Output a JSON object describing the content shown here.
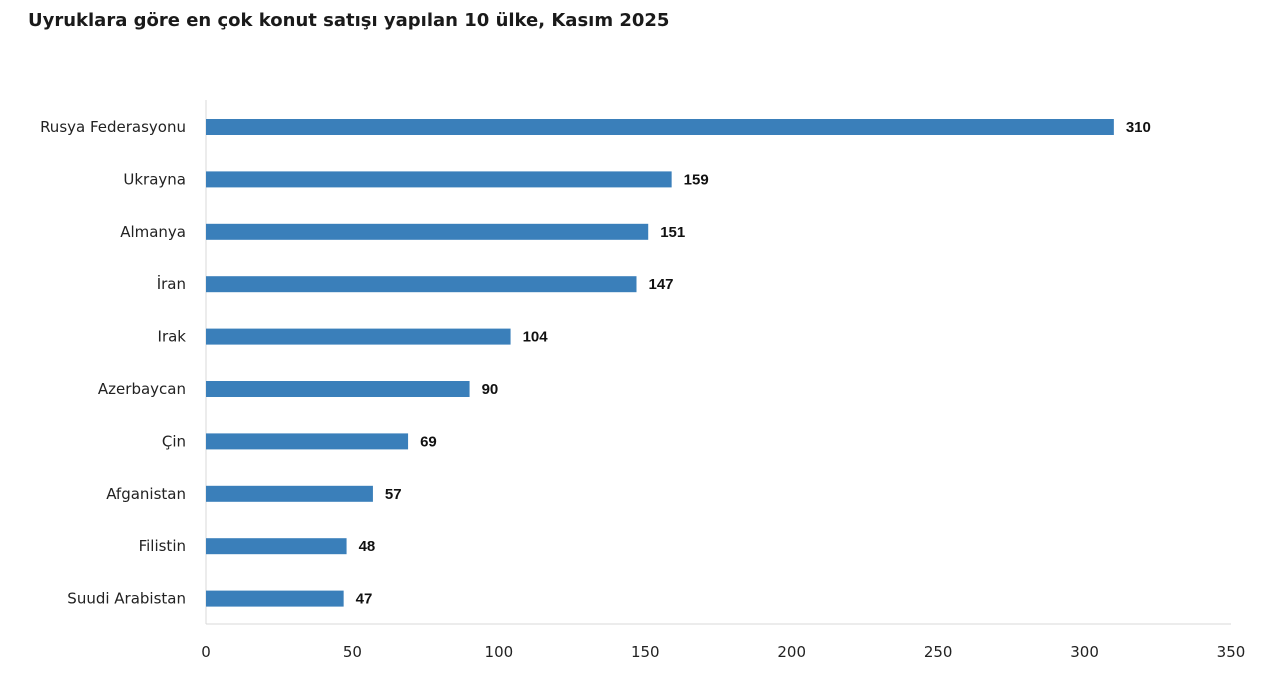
{
  "chart_data": {
    "type": "bar",
    "orientation": "horizontal",
    "title": "Uyruklara göre en çok konut satışı yapılan 10 ülke, Kasım 2025",
    "categories": [
      "Rusya Federasyonu",
      "Ukrayna",
      "Almanya",
      "İran",
      "Irak",
      "Azerbaycan",
      "Çin",
      "Afganistan",
      "Filistin",
      "Suudi Arabistan"
    ],
    "values": [
      310,
      159,
      151,
      147,
      104,
      90,
      69,
      57,
      48,
      47
    ],
    "xlim": [
      0,
      350
    ],
    "xticks": [
      0,
      50,
      100,
      150,
      200,
      250,
      300,
      350
    ],
    "xlabel": "",
    "ylabel": "",
    "data_labels": true,
    "grid": false,
    "legend": "none",
    "bar_color": "#3a7fba"
  }
}
